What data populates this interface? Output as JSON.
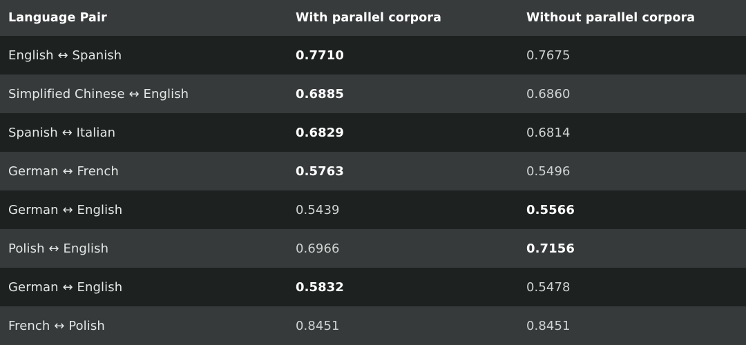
{
  "table": {
    "headers": [
      "Language Pair",
      "With parallel corpora",
      "Without parallel corpora"
    ],
    "rows": [
      {
        "pair": "English ↔ Spanish",
        "with": "0.7710",
        "without": "0.7675",
        "best": "with"
      },
      {
        "pair": "Simplified Chinese ↔ English",
        "with": "0.6885",
        "without": "0.6860",
        "best": "with"
      },
      {
        "pair": "Spanish ↔ Italian",
        "with": "0.6829",
        "without": "0.6814",
        "best": "with"
      },
      {
        "pair": "German ↔ French",
        "with": "0.5763",
        "without": "0.5496",
        "best": "with"
      },
      {
        "pair": "German ↔ English",
        "with": "0.5439",
        "without": "0.5566",
        "best": "without"
      },
      {
        "pair": "Polish ↔ English",
        "with": "0.6966",
        "without": "0.7156",
        "best": "without"
      },
      {
        "pair": "German ↔ English",
        "with": "0.5832",
        "without": "0.5478",
        "best": "with"
      },
      {
        "pair": "French ↔ Polish",
        "with": "0.8451",
        "without": "0.8451",
        "best": "none"
      }
    ]
  },
  "colors": {
    "background_dark": "#1d2221",
    "background_light": "#363a3a",
    "header_background": "#373b3b",
    "text": "#e3e7e6",
    "highlight_text": "#ffffff"
  }
}
